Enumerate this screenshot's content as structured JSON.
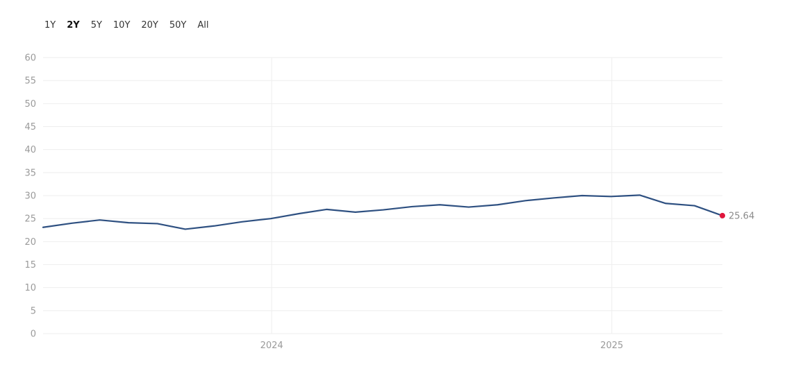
{
  "range_selector": {
    "options": [
      "1Y",
      "2Y",
      "5Y",
      "10Y",
      "20Y",
      "50Y",
      "All"
    ],
    "selected": "2Y"
  },
  "chart_data": {
    "type": "line",
    "title": "",
    "xlabel": "",
    "ylabel": "",
    "ylim": [
      0,
      60
    ],
    "y_ticks": [
      0,
      5,
      10,
      15,
      20,
      25,
      30,
      35,
      40,
      45,
      50,
      55,
      60
    ],
    "x_ticks": [
      "2024",
      "2025"
    ],
    "x_dates": [
      "2023-04-30",
      "2023-05-31",
      "2023-06-30",
      "2023-07-31",
      "2023-08-31",
      "2023-09-30",
      "2023-10-31",
      "2023-11-30",
      "2023-12-31",
      "2024-01-31",
      "2024-02-29",
      "2024-03-31",
      "2024-04-30",
      "2024-05-31",
      "2024-06-30",
      "2024-07-31",
      "2024-08-31",
      "2024-09-30",
      "2024-10-31",
      "2024-11-30",
      "2024-12-31",
      "2025-01-31",
      "2025-02-28",
      "2025-03-31",
      "2025-04-30"
    ],
    "series": [
      {
        "values": [
          23.1,
          24.0,
          24.7,
          24.1,
          23.9,
          22.7,
          23.4,
          24.3,
          25.0,
          26.1,
          27.0,
          26.4,
          26.9,
          27.6,
          28.0,
          27.5,
          28.0,
          28.9,
          29.5,
          30.0,
          29.8,
          30.1,
          28.3,
          27.8,
          25.64
        ]
      }
    ],
    "last_value_label": "25.64",
    "colors": {
      "line": "#2e5081",
      "marker": "#e0163c",
      "grid": "#eeeeee"
    },
    "grid": true
  }
}
